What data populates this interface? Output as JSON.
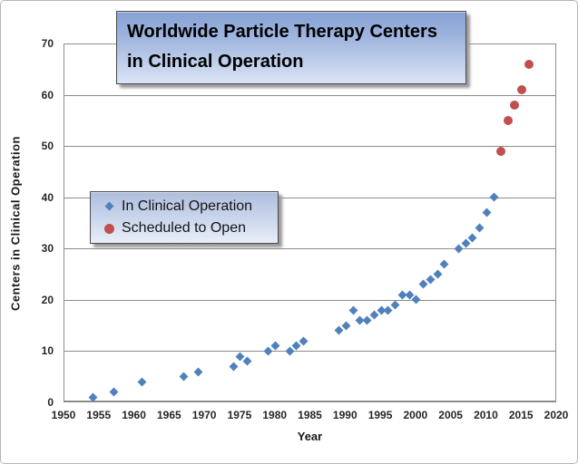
{
  "title": {
    "line1": "Worldwide Particle Therapy Centers",
    "line2": "in Clinical Operation"
  },
  "axes": {
    "x_title": "Year",
    "y_title": "Centers  in Clinical Operation"
  },
  "colors": {
    "series_operation": "#4f81bd",
    "series_scheduled": "#c0504d",
    "gridline": "#8c8c8c",
    "box_border": "#4a4a4a",
    "title_gradient_top": "#84a0d3",
    "title_gradient_bottom": "#dbe4f5"
  },
  "chart_data": {
    "type": "scatter",
    "title": "Worldwide Particle Therapy Centers in Clinical Operation",
    "xlabel": "Year",
    "ylabel": "Centers in Clinical Operation",
    "xlim": [
      1950,
      2020
    ],
    "ylim": [
      0,
      70
    ],
    "x_ticks": [
      1950,
      1955,
      1960,
      1965,
      1970,
      1975,
      1980,
      1985,
      1990,
      1995,
      2000,
      2005,
      2010,
      2015,
      2020
    ],
    "y_ticks": [
      0,
      10,
      20,
      30,
      40,
      50,
      60,
      70
    ],
    "grid": "horizontal",
    "legend_position": "inside-left",
    "series": [
      {
        "name": "In Clinical Operation",
        "marker": "diamond",
        "color": "#4f81bd",
        "points": [
          [
            1954,
            1
          ],
          [
            1957,
            2
          ],
          [
            1961,
            4
          ],
          [
            1967,
            5
          ],
          [
            1969,
            6
          ],
          [
            1974,
            7
          ],
          [
            1975,
            9
          ],
          [
            1976,
            8
          ],
          [
            1979,
            10
          ],
          [
            1980,
            11
          ],
          [
            1982,
            10
          ],
          [
            1983,
            11
          ],
          [
            1984,
            12
          ],
          [
            1989,
            14
          ],
          [
            1990,
            15
          ],
          [
            1991,
            18
          ],
          [
            1992,
            16
          ],
          [
            1993,
            16
          ],
          [
            1994,
            17
          ],
          [
            1995,
            18
          ],
          [
            1996,
            18
          ],
          [
            1997,
            19
          ],
          [
            1998,
            21
          ],
          [
            1999,
            21
          ],
          [
            2000,
            20
          ],
          [
            2001,
            23
          ],
          [
            2002,
            24
          ],
          [
            2003,
            25
          ],
          [
            2004,
            27
          ],
          [
            2006,
            30
          ],
          [
            2007,
            31
          ],
          [
            2008,
            32
          ],
          [
            2009,
            34
          ],
          [
            2010,
            37
          ],
          [
            2011,
            40
          ]
        ]
      },
      {
        "name": "Scheduled to Open",
        "marker": "circle",
        "color": "#c0504d",
        "points": [
          [
            2012,
            49
          ],
          [
            2013,
            55
          ],
          [
            2014,
            58
          ],
          [
            2015,
            61
          ],
          [
            2016,
            66
          ]
        ]
      }
    ]
  }
}
